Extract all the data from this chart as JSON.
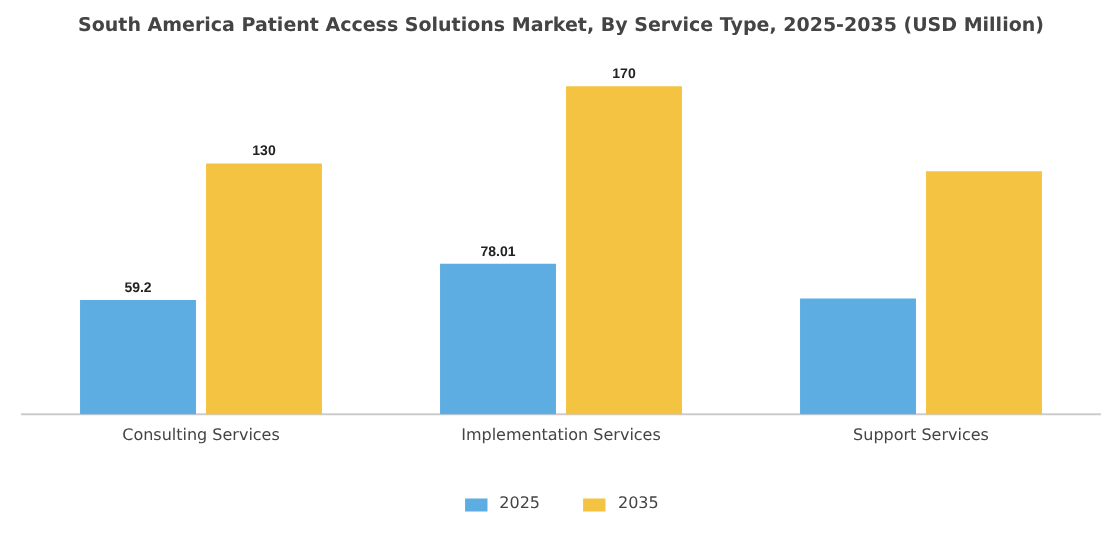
{
  "chart_data": {
    "type": "bar",
    "title": "South America Patient Access Solutions Market, By Service Type, 2025-2035 (USD Million)",
    "categories": [
      "Consulting Services",
      "Implementation Services",
      "Support Services"
    ],
    "series": [
      {
        "name": "2025",
        "color": "#5dade2",
        "values": [
          59.2,
          78.01,
          60
        ],
        "value_labels": [
          "59.2",
          "78.01",
          null
        ]
      },
      {
        "name": "2035",
        "color": "#f5c342",
        "values": [
          130,
          170,
          126
        ],
        "value_labels": [
          "130",
          "170",
          null
        ]
      }
    ],
    "legend": "bottom",
    "grid": false
  }
}
